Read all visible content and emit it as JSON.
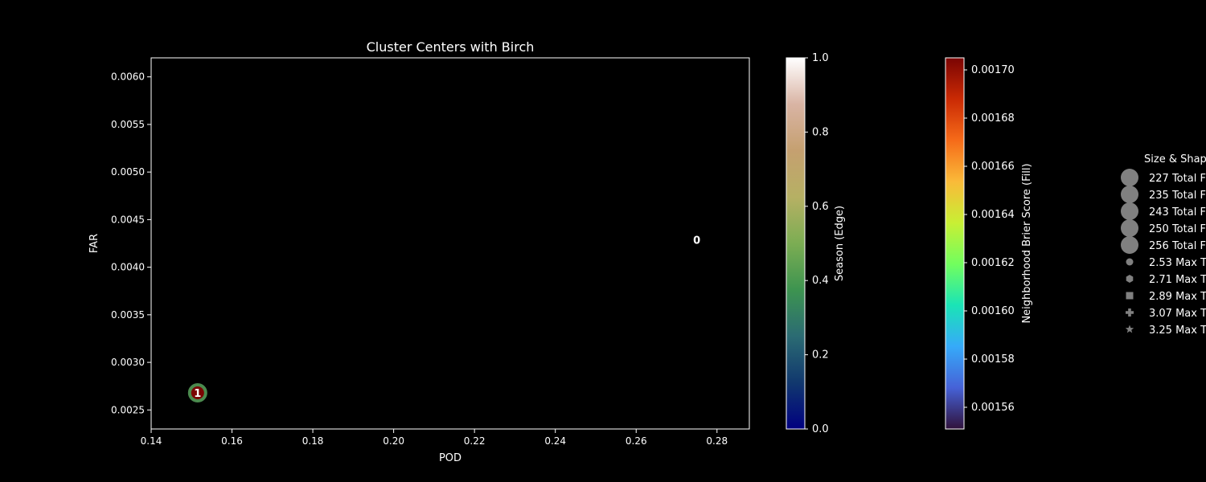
{
  "chart_data": {
    "type": "scatter",
    "title": "Cluster Centers with Birch",
    "xlabel": "POD",
    "ylabel": "FAR",
    "xlim": [
      0.14,
      0.288
    ],
    "ylim": [
      0.0023,
      0.0062
    ],
    "xticks": [
      0.14,
      0.16,
      0.18,
      0.2,
      0.22,
      0.24,
      0.26,
      0.28
    ],
    "xtick_labels": [
      "0.14",
      "0.16",
      "0.18",
      "0.20",
      "0.22",
      "0.24",
      "0.26",
      "0.28"
    ],
    "yticks": [
      0.0025,
      0.003,
      0.0035,
      0.004,
      0.0045,
      0.005,
      0.0055,
      0.006
    ],
    "ytick_labels": [
      "0.0025",
      "0.0030",
      "0.0035",
      "0.0040",
      "0.0045",
      "0.0050",
      "0.0055",
      "0.0060"
    ],
    "points": [
      {
        "label": "0",
        "x": 0.275,
        "y": 0.00429,
        "season": 1.0,
        "edge_color": "#ffffff",
        "fill_color": "#000000",
        "visible_marker": false
      },
      {
        "label": "1",
        "x": 0.1515,
        "y": 0.00268,
        "season": 0.42,
        "edge_color": "#4b8a4e",
        "fill_color": "#7a0403",
        "visible_marker": true
      }
    ],
    "colorbars": [
      {
        "label": "Season (Edge)",
        "colormap": "gist_earth",
        "range": [
          0.0,
          1.0
        ],
        "ticks": [
          0.0,
          0.2,
          0.4,
          0.6,
          0.8,
          1.0
        ],
        "tick_labels": [
          "0.0",
          "0.2",
          "0.4",
          "0.6",
          "0.8",
          "1.0"
        ],
        "stops": [
          "#000080",
          "#11386e",
          "#2b6b73",
          "#3d9450",
          "#7cad53",
          "#b6b064",
          "#c5a070",
          "#d9b4a4",
          "#ffffff"
        ]
      },
      {
        "label": "Neighborhood Brier Score (Fill)",
        "colormap": "turbo",
        "range": [
          0.001551,
          0.001705
        ],
        "ticks": [
          0.00156,
          0.00158,
          0.0016,
          0.00162,
          0.00164,
          0.00166,
          0.00168,
          0.0017
        ],
        "tick_labels": [
          "0.00156",
          "0.00158",
          "0.00160",
          "0.00162",
          "0.00164",
          "0.00166",
          "0.00168",
          "0.00170"
        ],
        "stops": [
          "#30123b",
          "#4662d7",
          "#36aaf9",
          "#1ae4b6",
          "#72fe5e",
          "#c8ef34",
          "#faba39",
          "#f66b19",
          "#ca2a04",
          "#7a0403"
        ]
      }
    ],
    "legend": {
      "title": "Size & Shap",
      "placement": "right, partially cut off",
      "marker_color": "#808080",
      "entries": [
        {
          "label": "227 Total F",
          "marker": "circle-large"
        },
        {
          "label": "235 Total F",
          "marker": "circle-large"
        },
        {
          "label": "243 Total F",
          "marker": "circle-large"
        },
        {
          "label": "250 Total F",
          "marker": "circle-large"
        },
        {
          "label": "256 Total F",
          "marker": "circle-large"
        },
        {
          "label": "2.53 Max T",
          "marker": "circle"
        },
        {
          "label": "2.71 Max T",
          "marker": "hexagon"
        },
        {
          "label": "2.89 Max T",
          "marker": "square"
        },
        {
          "label": "3.07 Max T",
          "marker": "plus"
        },
        {
          "label": "3.25 Max T",
          "marker": "star"
        }
      ]
    },
    "grid": false,
    "background": "#000000"
  }
}
